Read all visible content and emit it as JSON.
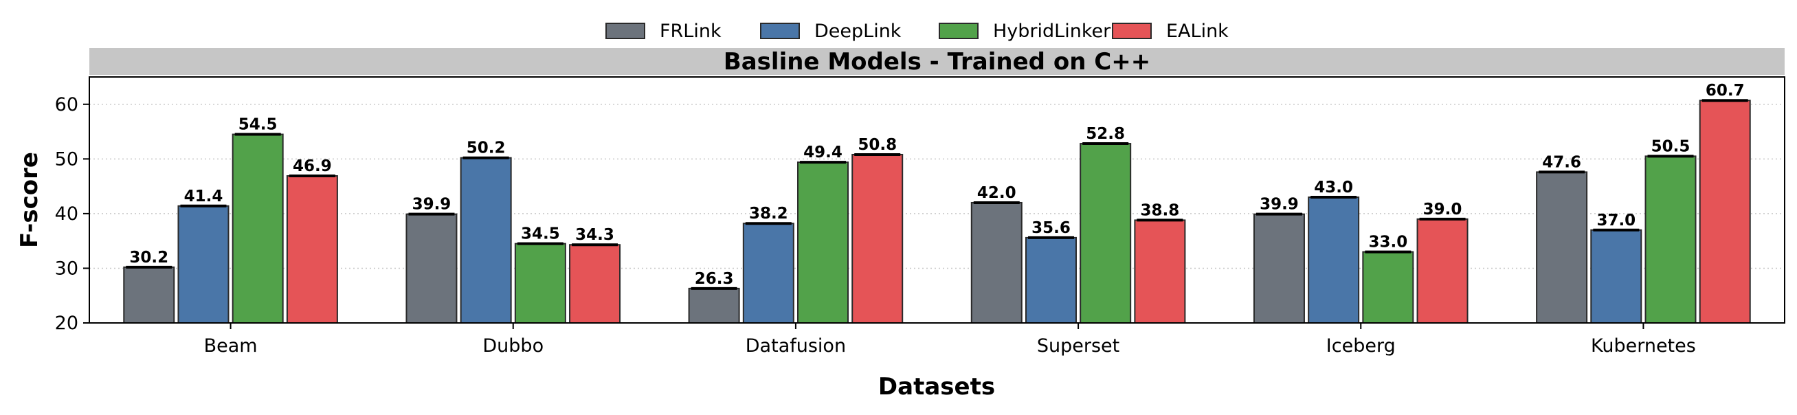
{
  "chart_data": {
    "type": "bar",
    "title": "Basline Models - Trained on C++",
    "xlabel": "Datasets",
    "ylabel": "F-score",
    "ylim": [
      20,
      65
    ],
    "yticks": [
      20,
      30,
      40,
      50,
      60
    ],
    "grid": "horizontal dotted",
    "legend_position": "top-center",
    "categories": [
      "Beam",
      "Dubbo",
      "Datafusion",
      "Superset",
      "Iceberg",
      "Kubernetes"
    ],
    "series": [
      {
        "name": "FRLink",
        "color": "#6c737c",
        "values": [
          30.2,
          39.9,
          26.3,
          42.0,
          39.9,
          47.6
        ]
      },
      {
        "name": "DeepLink",
        "color": "#4a76a8",
        "values": [
          41.4,
          50.2,
          38.2,
          35.6,
          43.0,
          37.0
        ]
      },
      {
        "name": "HybridLinker",
        "color": "#52a24a",
        "values": [
          54.5,
          34.5,
          49.4,
          52.8,
          33.0,
          50.5
        ]
      },
      {
        "name": "EALink",
        "color": "#e55457",
        "values": [
          46.9,
          34.3,
          50.8,
          38.8,
          39.0,
          60.7
        ]
      }
    ]
  }
}
